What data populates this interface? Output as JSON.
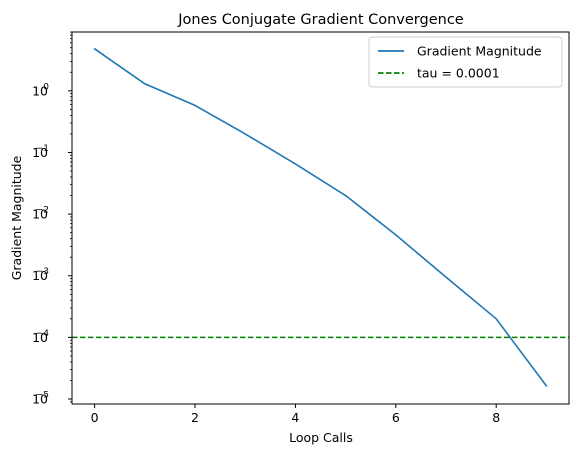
{
  "chart_data": {
    "type": "line",
    "title": "Jones Conjugate Gradient Convergence",
    "xlabel": "Loop Calls",
    "ylabel": "Gradient Magnitude",
    "xlim": [
      -0.45,
      9.45
    ],
    "ylim": [
      8.3e-06,
      9.0
    ],
    "yscale": "log",
    "xticks": [
      0,
      2,
      4,
      6,
      8
    ],
    "xtick_labels": [
      "0",
      "2",
      "4",
      "6",
      "8"
    ],
    "ytick_exponents": [
      0,
      -1,
      -2,
      -3,
      -4,
      -5
    ],
    "ytick_base": "10",
    "x": [
      0,
      1,
      2,
      3,
      4,
      5,
      6,
      7,
      8,
      9
    ],
    "series": [
      {
        "name": "Gradient Magnitude",
        "color": "#1f77b4",
        "style": "solid",
        "values": [
          4.8,
          1.3,
          0.58,
          0.2,
          0.065,
          0.02,
          0.0046,
          0.00095,
          0.0002,
          1.63e-05
        ]
      }
    ],
    "hlines": [
      {
        "name": "tau = 0.0001",
        "y": 0.0001,
        "color": "#008000",
        "style": "dashed"
      }
    ],
    "legend": {
      "position": "top-right",
      "entries": [
        "Gradient Magnitude",
        "tau = 0.0001"
      ]
    },
    "grid": false
  }
}
